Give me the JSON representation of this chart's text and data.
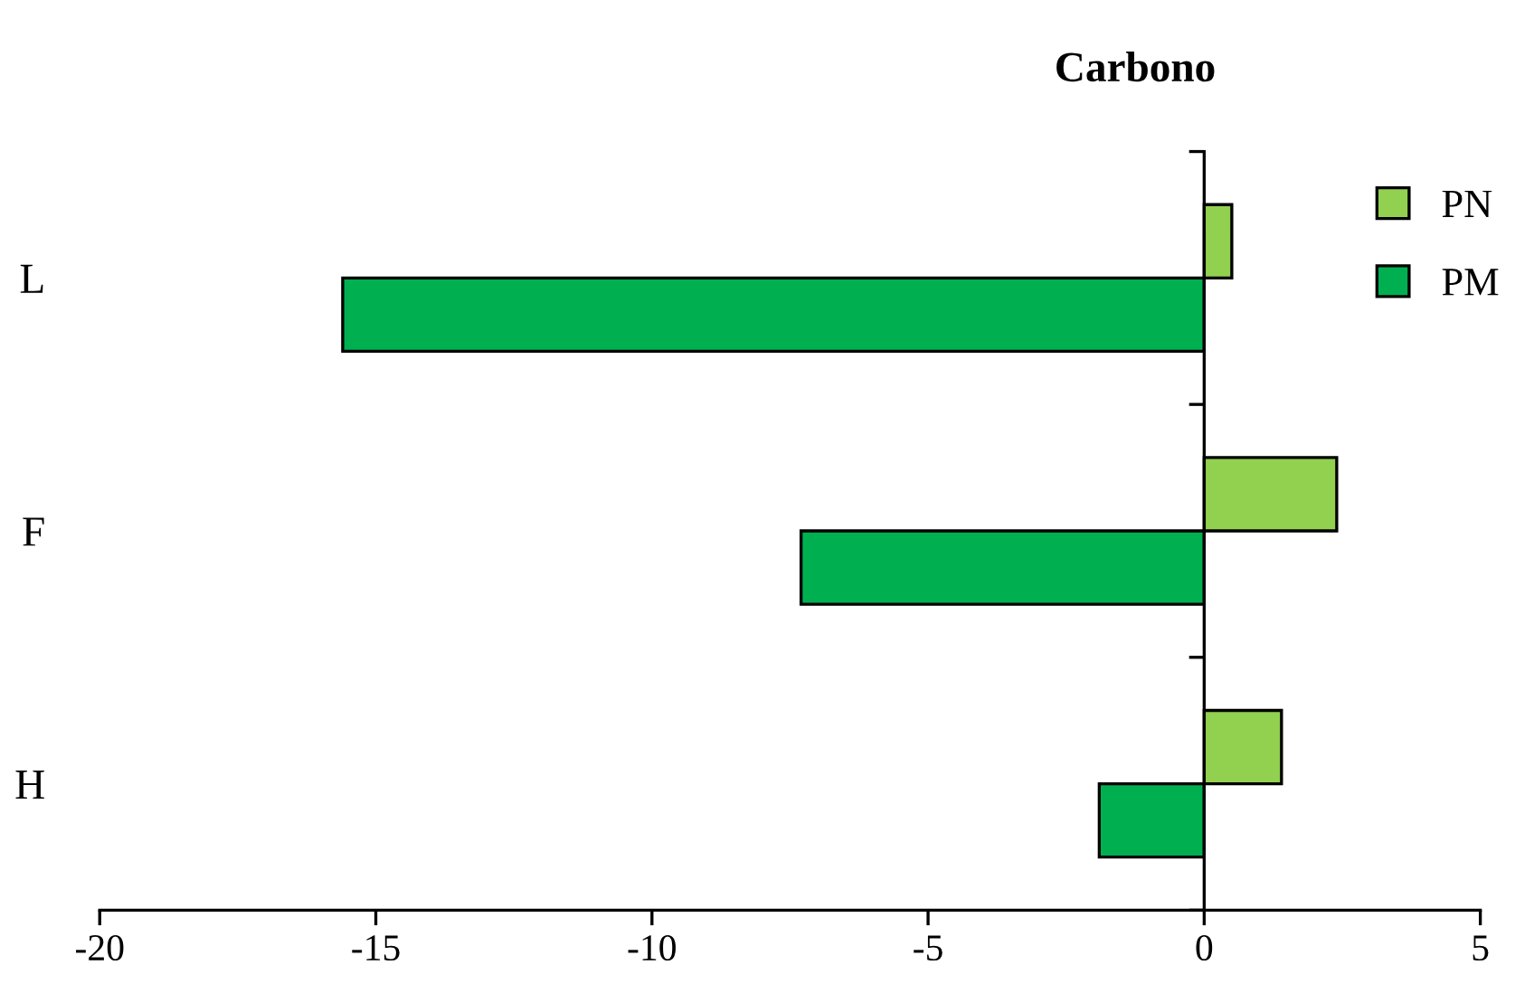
{
  "chart_data": {
    "type": "bar",
    "orientation": "horizontal",
    "title": "Carbono",
    "categories": [
      "L",
      "F",
      "H"
    ],
    "series": [
      {
        "name": "PN",
        "color": "#92d050",
        "values": [
          0.5,
          2.4,
          1.4
        ]
      },
      {
        "name": "PM",
        "color": "#00b050",
        "values": [
          -15.6,
          -7.3,
          -1.9
        ]
      }
    ],
    "xlim": [
      -20,
      5
    ],
    "xticks": [
      -20,
      -15,
      -10,
      -5,
      0,
      5
    ],
    "legend": "top right"
  }
}
